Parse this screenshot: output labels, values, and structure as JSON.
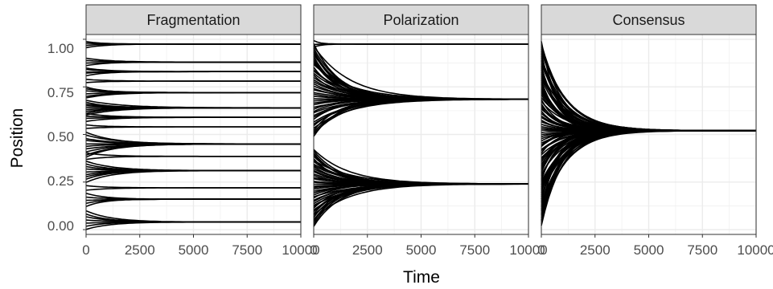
{
  "chart_data": {
    "type": "line",
    "xlabel": "Time",
    "ylabel": "Position",
    "xlim": [
      0,
      10000
    ],
    "ylim": [
      -0.025,
      1.025
    ],
    "x_ticks": [
      0,
      2500,
      5000,
      7500,
      10000
    ],
    "x_tick_labels": [
      "0",
      "2500",
      "5000",
      "7500",
      "10000"
    ],
    "y_ticks": [
      0,
      0.25,
      0.5,
      0.75,
      1.0
    ],
    "y_tick_labels": [
      "0.00",
      "0.25",
      "0.50",
      "0.75",
      "1.00"
    ],
    "grid": true,
    "theme": "bw",
    "line_color": "#000000",
    "panels": [
      {
        "title": "Fragmentation",
        "groups": [
          {
            "final": 0.975,
            "start_min": 0.955,
            "start_max": 0.99,
            "rate": 1.2,
            "count": 4
          },
          {
            "final": 0.88,
            "start_min": 0.86,
            "start_max": 0.9,
            "rate": 1.0,
            "count": 4
          },
          {
            "final": 0.83,
            "start_min": 0.81,
            "start_max": 0.85,
            "rate": 1.0,
            "count": 5
          },
          {
            "final": 0.78,
            "start_min": 0.77,
            "start_max": 0.79,
            "rate": 1.0,
            "count": 2
          },
          {
            "final": 0.72,
            "start_min": 0.69,
            "start_max": 0.75,
            "rate": 1.0,
            "count": 6
          },
          {
            "final": 0.64,
            "start_min": 0.6,
            "start_max": 0.68,
            "rate": 0.8,
            "count": 9
          },
          {
            "final": 0.59,
            "start_min": 0.57,
            "start_max": 0.61,
            "rate": 1.0,
            "count": 4
          },
          {
            "final": 0.54,
            "start_min": 0.53,
            "start_max": 0.55,
            "rate": 1.0,
            "count": 2
          },
          {
            "final": 0.45,
            "start_min": 0.38,
            "start_max": 0.51,
            "rate": 0.7,
            "count": 10
          },
          {
            "final": 0.385,
            "start_min": 0.37,
            "start_max": 0.4,
            "rate": 1.0,
            "count": 2
          },
          {
            "final": 0.31,
            "start_min": 0.25,
            "start_max": 0.36,
            "rate": 0.8,
            "count": 9
          },
          {
            "final": 0.22,
            "start_min": 0.21,
            "start_max": 0.23,
            "rate": 1.0,
            "count": 2
          },
          {
            "final": 0.16,
            "start_min": 0.12,
            "start_max": 0.19,
            "rate": 1.0,
            "count": 5
          },
          {
            "final": 0.04,
            "start_min": 0.0,
            "start_max": 0.1,
            "rate": 0.9,
            "count": 7
          }
        ]
      },
      {
        "title": "Polarization",
        "groups": [
          {
            "final": 0.975,
            "start_min": 0.96,
            "start_max": 0.99,
            "rate": 3.0,
            "count": 3
          },
          {
            "final": 0.685,
            "start_min": 0.49,
            "start_max": 0.975,
            "rate": 0.75,
            "count": 45
          },
          {
            "final": 0.24,
            "start_min": 0.02,
            "start_max": 0.42,
            "rate": 0.75,
            "count": 45
          }
        ]
      },
      {
        "title": "Consensus",
        "groups": [
          {
            "final": 0.52,
            "start_min": 0.02,
            "start_max": 0.99,
            "rate": 1.1,
            "count": 90
          }
        ]
      }
    ]
  }
}
